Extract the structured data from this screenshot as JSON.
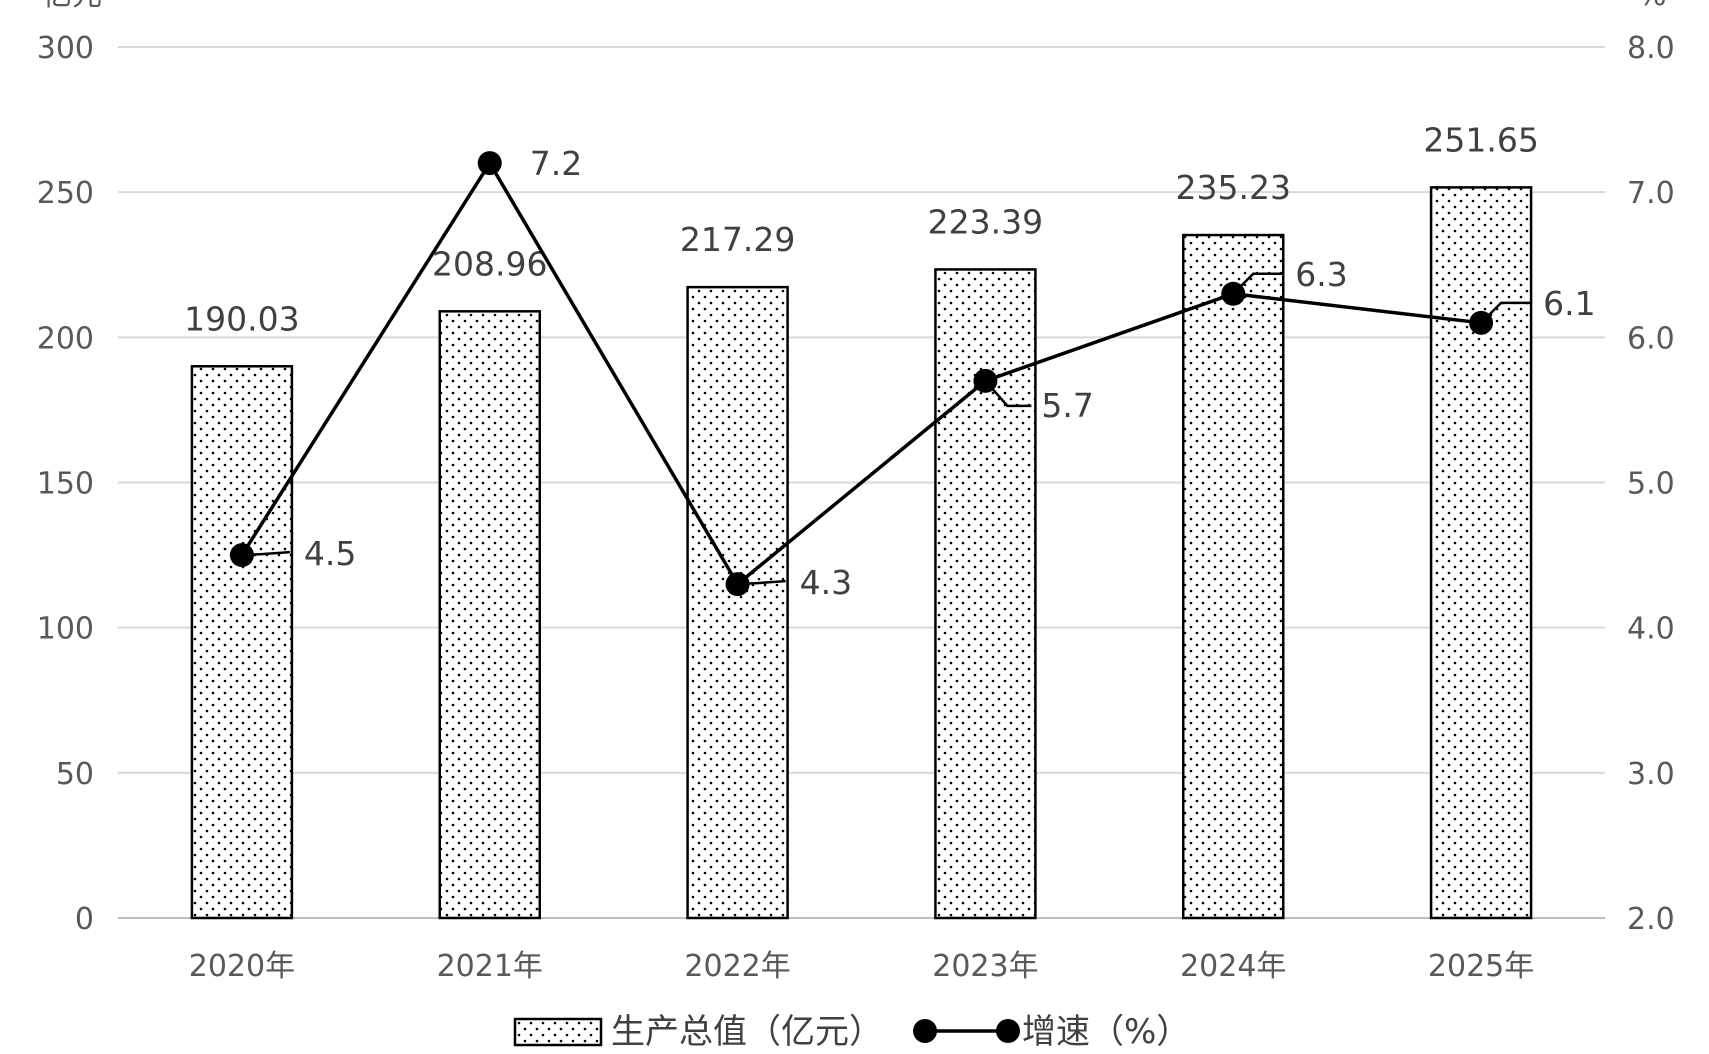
{
  "chart_data": {
    "type": "bar",
    "title": "",
    "left_axis_unit": "亿元",
    "right_axis_unit": "%",
    "categories": [
      "2020年",
      "2021年",
      "2022年",
      "2023年",
      "2024年",
      "2025年"
    ],
    "series": [
      {
        "name": "生产总值（亿元）",
        "kind": "bar",
        "axis": "left",
        "pattern": "dotted",
        "values": [
          190.03,
          208.96,
          217.29,
          223.39,
          235.23,
          251.65
        ],
        "labels": [
          "190.03",
          "208.96",
          "217.29",
          "223.39",
          "235.23",
          "251.65"
        ]
      },
      {
        "name": "增速（%）",
        "kind": "line",
        "axis": "right",
        "marker": "filled-circle",
        "values": [
          4.5,
          7.2,
          4.3,
          5.7,
          6.3,
          6.1
        ],
        "labels": [
          "4.5",
          "7.2",
          "4.3",
          "5.7",
          "6.3",
          "6.1"
        ]
      }
    ],
    "left_axis": {
      "ylim": [
        0,
        300
      ],
      "ticks": [
        "0",
        "50",
        "100",
        "150",
        "200",
        "250",
        "300"
      ]
    },
    "right_axis": {
      "ylim": [
        2.0,
        8.0
      ],
      "ticks": [
        "2.0",
        "3.0",
        "4.0",
        "5.0",
        "6.0",
        "7.0",
        "8.0"
      ]
    },
    "grid": true,
    "legend_position": "bottom-center",
    "colors": {
      "line": "#000000",
      "bar_outline": "#000000",
      "bar_fill": "#ffffff",
      "dots": "#000000",
      "grid": "#d9d9d9",
      "axis_text": "#595959"
    }
  }
}
